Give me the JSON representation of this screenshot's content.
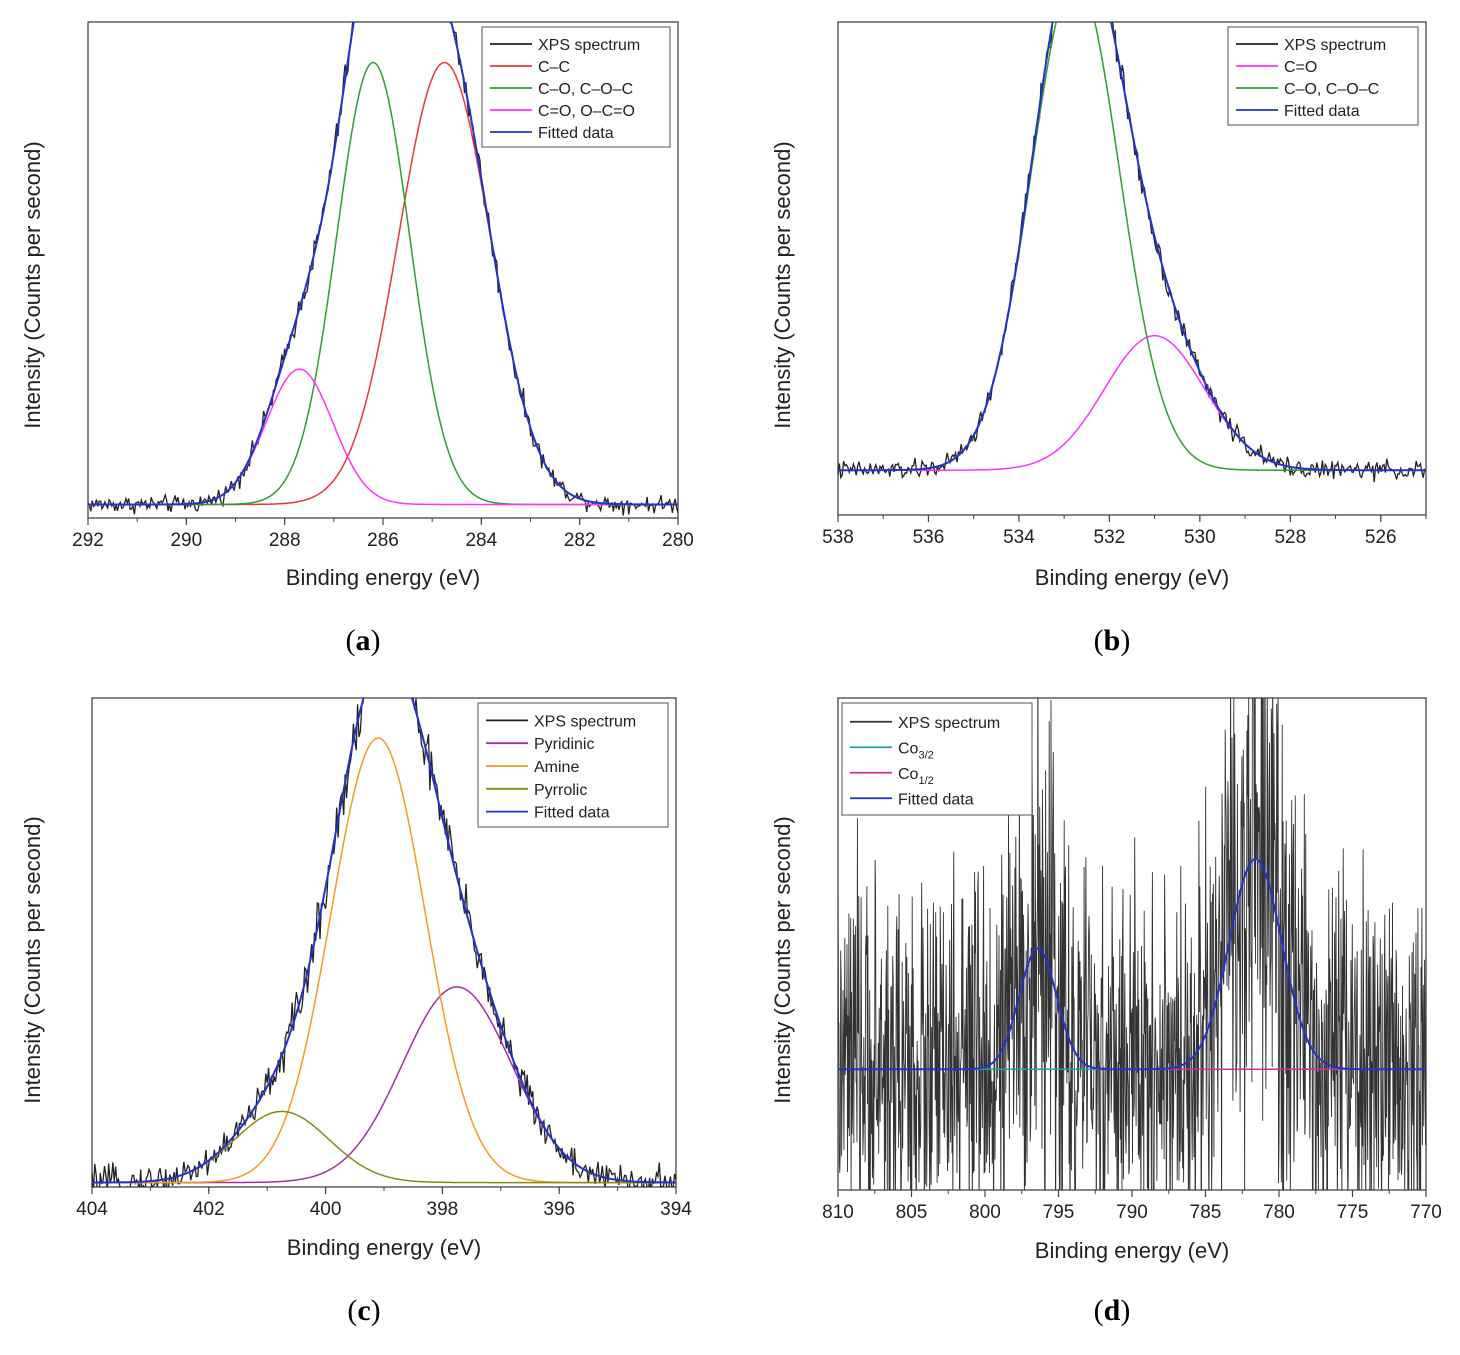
{
  "chart_data": [
    {
      "type": "line",
      "panel_label": "(a)",
      "panel_letter": "a",
      "xlabel": "Binding energy (eV)",
      "ylabel": "Intensity (Counts per second)",
      "xlim": [
        292,
        280
      ],
      "xticks": [
        "292",
        "290",
        "288",
        "286",
        "284",
        "282",
        "280"
      ],
      "ylim": [
        0,
        1.1
      ],
      "baseline": 0.03,
      "noise": 0.012,
      "legend": "top-right",
      "series": [
        {
          "name": "XPS spectrum",
          "color": "#222222",
          "role": "spectrum"
        },
        {
          "name": "C–C",
          "color": "#e53935",
          "role": "peak",
          "peak": {
            "center": 284.75,
            "height": 0.98,
            "fwhm": 2.2
          }
        },
        {
          "name": "C–O, C–O–C",
          "color": "#2e9e2e",
          "role": "peak",
          "peak": {
            "center": 286.2,
            "height": 0.98,
            "fwhm": 1.75
          }
        },
        {
          "name": "C=O, O–C=O",
          "color": "#ff33ff",
          "role": "peak",
          "peak": {
            "center": 287.7,
            "height": 0.3,
            "fwhm": 1.6
          }
        },
        {
          "name": "Fitted data",
          "color": "#2233cc",
          "role": "fit"
        }
      ]
    },
    {
      "type": "line",
      "panel_label": "(b)",
      "panel_letter": "b",
      "xlabel": "Binding energy (eV)",
      "ylabel": "Intensity (Counts per second)",
      "xlim": [
        538,
        525
      ],
      "xticks": [
        "538",
        "536",
        "534",
        "532",
        "530",
        "528",
        "526"
      ],
      "ylim": [
        0,
        1.1
      ],
      "baseline": 0.1,
      "noise": 0.012,
      "legend": "top-right",
      "series": [
        {
          "name": "XPS spectrum",
          "color": "#222222",
          "role": "spectrum"
        },
        {
          "name": "C=O",
          "color": "#ff33ff",
          "role": "peak",
          "peak": {
            "center": 531.0,
            "height": 0.3,
            "fwhm": 2.6
          }
        },
        {
          "name": "C–O, C–O–C",
          "color": "#2e9e2e",
          "role": "peak",
          "peak": {
            "center": 532.75,
            "height": 1.1,
            "fwhm": 2.3
          }
        },
        {
          "name": "Fitted data",
          "color": "#2233cc",
          "role": "fit"
        }
      ]
    },
    {
      "type": "line",
      "panel_label": "(c)",
      "panel_letter": "c",
      "xlabel": "Binding energy (eV)",
      "ylabel": "Intensity (Counts per second)",
      "xlim": [
        404,
        394
      ],
      "xticks": [
        "404",
        "402",
        "400",
        "398",
        "396",
        "394"
      ],
      "ylim": [
        0,
        1.1
      ],
      "baseline": 0.01,
      "noise": 0.022,
      "legend": "top-right",
      "series": [
        {
          "name": "XPS spectrum",
          "color": "#222222",
          "role": "spectrum"
        },
        {
          "name": "Pyridinic",
          "color": "#a030a0",
          "role": "peak",
          "peak": {
            "center": 397.75,
            "height": 0.44,
            "fwhm": 2.2
          }
        },
        {
          "name": "Amine",
          "color": "#f59a23",
          "role": "peak",
          "peak": {
            "center": 399.1,
            "height": 1.0,
            "fwhm": 1.9
          }
        },
        {
          "name": "Pyrrolic",
          "color": "#8a8a10",
          "role": "peak",
          "peak": {
            "center": 400.75,
            "height": 0.16,
            "fwhm": 1.9
          }
        },
        {
          "name": "Fitted data",
          "color": "#2233cc",
          "role": "fit"
        }
      ]
    },
    {
      "type": "line",
      "panel_label": "(d)",
      "panel_letter": "d",
      "xlabel": "Binding energy (eV)",
      "ylabel": "Intensity (Counts per second)",
      "xlim": [
        810,
        770
      ],
      "xticks": [
        "810",
        "805",
        "800",
        "795",
        "790",
        "785",
        "780",
        "775",
        "770"
      ],
      "ylim": [
        0,
        1.1
      ],
      "baseline": 0.27,
      "noise": 0.2,
      "legend": "top-left",
      "series": [
        {
          "name": "XPS spectrum",
          "color": "#333333",
          "role": "spectrum"
        },
        {
          "name": "Co3/2",
          "label_main": "Co",
          "label_sub": "3/2",
          "color": "#20a0a0",
          "role": "peak",
          "peak": {
            "center": 781.6,
            "height": 0.47,
            "fwhm": 4.2
          }
        },
        {
          "name": "Co1/2",
          "label_main": "Co",
          "label_sub": "1/2",
          "color": "#cc3399",
          "role": "peak",
          "peak": {
            "center": 796.4,
            "height": 0.27,
            "fwhm": 3.0
          }
        },
        {
          "name": "Fitted data",
          "color": "#2233cc",
          "role": "fit"
        }
      ]
    }
  ]
}
